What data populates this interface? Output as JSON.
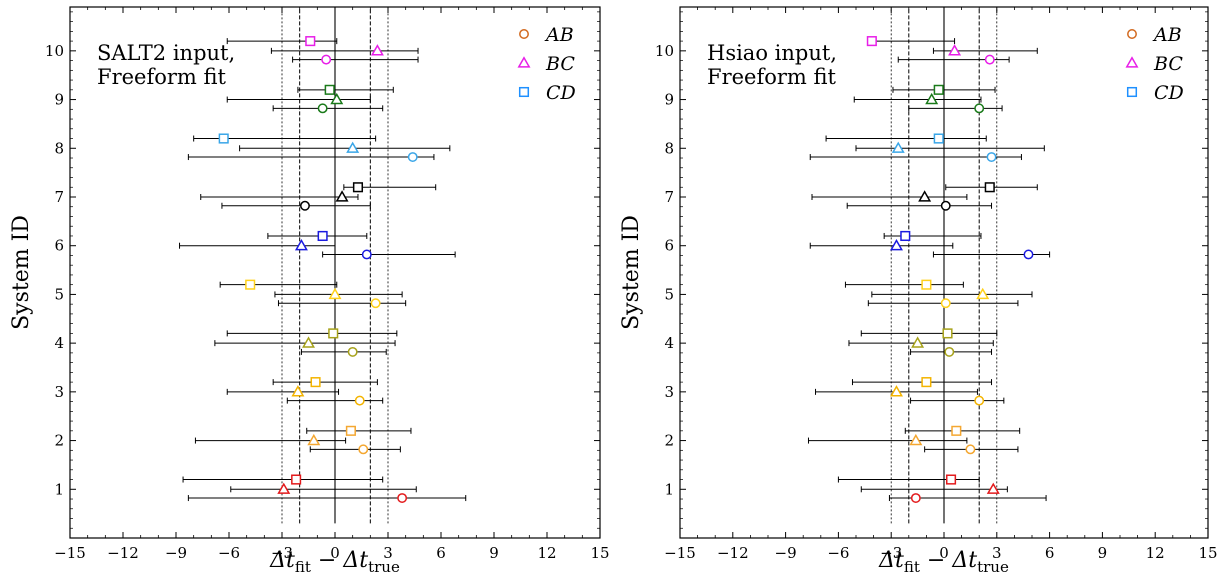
{
  "chart_data": [
    {
      "type": "scatter",
      "annotation_lines": [
        "SALT2 input,",
        "Freeform fit"
      ],
      "xlabel": "Δt_fit − Δt_true",
      "ylabel": "System ID",
      "xlim": [
        -15,
        15
      ],
      "ylim": [
        0,
        10.9
      ],
      "xticks": [
        "−15",
        "−12",
        "−9",
        "−6",
        "−3",
        "0",
        "3",
        "6",
        "9",
        "12",
        "15"
      ],
      "yticks": [
        "1",
        "2",
        "3",
        "4",
        "5",
        "6",
        "7",
        "8",
        "9",
        "10"
      ],
      "ref_lines": {
        "solid": [
          0
        ],
        "dashed": [
          -2,
          2
        ],
        "dotted": [
          -3,
          3
        ]
      },
      "legend": [
        {
          "label": "AB",
          "marker": "circle",
          "color": "#d2691e"
        },
        {
          "label": "BC",
          "marker": "triangle",
          "color": "#e81ee8"
        },
        {
          "label": "CD",
          "marker": "square",
          "color": "#1e90ff"
        }
      ],
      "system_colors": [
        "#e31a1c",
        "#f4a731",
        "#f4b400",
        "#a7a21a",
        "#ffd11a",
        "#1a1ae0",
        "#000000",
        "#3aa6e8",
        "#1a7a1a",
        "#e81ee8",
        "#cd7a2e"
      ],
      "points": [
        {
          "system": 1,
          "pair": "AB",
          "y": 0.82,
          "x": 3.8,
          "lo": -8.3,
          "hi": 7.4
        },
        {
          "system": 1,
          "pair": "BC",
          "y": 1.0,
          "x": -2.9,
          "lo": -5.9,
          "hi": 4.6
        },
        {
          "system": 1,
          "pair": "CD",
          "y": 1.2,
          "x": -2.2,
          "lo": -8.6,
          "hi": 2.7
        },
        {
          "system": 2,
          "pair": "AB",
          "y": 1.82,
          "x": 1.6,
          "lo": -1.4,
          "hi": 3.7
        },
        {
          "system": 2,
          "pair": "BC",
          "y": 2.0,
          "x": -1.2,
          "lo": -7.9,
          "hi": 0.6
        },
        {
          "system": 2,
          "pair": "CD",
          "y": 2.2,
          "x": 0.9,
          "lo": -1.6,
          "hi": 4.3
        },
        {
          "system": 3,
          "pair": "AB",
          "y": 2.82,
          "x": 1.4,
          "lo": -2.7,
          "hi": 2.7
        },
        {
          "system": 3,
          "pair": "BC",
          "y": 3.0,
          "x": -2.1,
          "lo": -6.1,
          "hi": 0.2
        },
        {
          "system": 3,
          "pair": "CD",
          "y": 3.2,
          "x": -1.1,
          "lo": -3.5,
          "hi": 2.4
        },
        {
          "system": 4,
          "pair": "AB",
          "y": 3.82,
          "x": 1.0,
          "lo": -1.9,
          "hi": 2.9
        },
        {
          "system": 4,
          "pair": "BC",
          "y": 4.0,
          "x": -1.5,
          "lo": -6.8,
          "hi": 3.4
        },
        {
          "system": 4,
          "pair": "CD",
          "y": 4.2,
          "x": -0.1,
          "lo": -6.1,
          "hi": 3.5
        },
        {
          "system": 5,
          "pair": "AB",
          "y": 4.82,
          "x": 2.3,
          "lo": -3.2,
          "hi": 4.0
        },
        {
          "system": 5,
          "pair": "BC",
          "y": 5.0,
          "x": 0.0,
          "lo": -3.4,
          "hi": 3.8
        },
        {
          "system": 5,
          "pair": "CD",
          "y": 5.2,
          "x": -4.8,
          "lo": -6.5,
          "hi": 0.1
        },
        {
          "system": 6,
          "pair": "AB",
          "y": 5.82,
          "x": 1.8,
          "lo": -0.7,
          "hi": 6.8
        },
        {
          "system": 6,
          "pair": "BC",
          "y": 6.0,
          "x": -1.9,
          "lo": -8.8,
          "hi": 0.0
        },
        {
          "system": 6,
          "pair": "CD",
          "y": 6.2,
          "x": -0.7,
          "lo": -3.8,
          "hi": 1.8
        },
        {
          "system": 7,
          "pair": "AB",
          "y": 6.82,
          "x": -1.7,
          "lo": -6.4,
          "hi": 2.0
        },
        {
          "system": 7,
          "pair": "BC",
          "y": 7.0,
          "x": 0.4,
          "lo": -7.6,
          "hi": 1.3
        },
        {
          "system": 7,
          "pair": "CD",
          "y": 7.2,
          "x": 1.3,
          "lo": 0.5,
          "hi": 5.7
        },
        {
          "system": 8,
          "pair": "AB",
          "y": 7.82,
          "x": 4.4,
          "lo": -8.3,
          "hi": 5.6
        },
        {
          "system": 8,
          "pair": "BC",
          "y": 8.0,
          "x": 1.0,
          "lo": -5.4,
          "hi": 6.5
        },
        {
          "system": 8,
          "pair": "CD",
          "y": 8.2,
          "x": -6.3,
          "lo": -8.0,
          "hi": 2.3
        },
        {
          "system": 9,
          "pair": "AB",
          "y": 8.82,
          "x": -0.7,
          "lo": -3.5,
          "hi": 2.7
        },
        {
          "system": 9,
          "pair": "BC",
          "y": 9.0,
          "x": 0.1,
          "lo": -6.1,
          "hi": 2.0
        },
        {
          "system": 9,
          "pair": "CD",
          "y": 9.2,
          "x": -0.3,
          "lo": -2.1,
          "hi": 3.3
        },
        {
          "system": 10,
          "pair": "AB",
          "y": 9.82,
          "x": -0.5,
          "lo": -2.4,
          "hi": 4.7
        },
        {
          "system": 10,
          "pair": "BC",
          "y": 10.0,
          "x": 2.4,
          "lo": -3.6,
          "hi": 4.7
        },
        {
          "system": 10,
          "pair": "CD",
          "y": 10.2,
          "x": -1.4,
          "lo": -6.1,
          "hi": 0.1
        }
      ]
    },
    {
      "type": "scatter",
      "annotation_lines": [
        "Hsiao input,",
        "Freeform fit"
      ],
      "xlabel": "Δt_fit − Δt_true",
      "ylabel": "System ID",
      "xlim": [
        -15,
        15
      ],
      "ylim": [
        0,
        10.9
      ],
      "xticks": [
        "−15",
        "−12",
        "−9",
        "−6",
        "−3",
        "0",
        "3",
        "6",
        "9",
        "12",
        "15"
      ],
      "yticks": [
        "1",
        "2",
        "3",
        "4",
        "5",
        "6",
        "7",
        "8",
        "9",
        "10"
      ],
      "ref_lines": {
        "solid": [
          0
        ],
        "dashed": [
          -2,
          2
        ],
        "dotted": [
          -3,
          3
        ]
      },
      "legend": [
        {
          "label": "AB",
          "marker": "circle",
          "color": "#d2691e"
        },
        {
          "label": "BC",
          "marker": "triangle",
          "color": "#e81ee8"
        },
        {
          "label": "CD",
          "marker": "square",
          "color": "#1e90ff"
        }
      ],
      "system_colors": [
        "#e31a1c",
        "#f4a731",
        "#f4b400",
        "#a7a21a",
        "#ffd11a",
        "#1a1ae0",
        "#000000",
        "#3aa6e8",
        "#1a7a1a",
        "#e81ee8",
        "#cd7a2e"
      ],
      "points": [
        {
          "system": 1,
          "pair": "AB",
          "y": 0.82,
          "x": -1.6,
          "lo": -3.1,
          "hi": 5.8
        },
        {
          "system": 1,
          "pair": "BC",
          "y": 1.0,
          "x": 2.8,
          "lo": -4.7,
          "hi": 3.6
        },
        {
          "system": 1,
          "pair": "CD",
          "y": 1.2,
          "x": 0.4,
          "lo": -6.0,
          "hi": 2.0
        },
        {
          "system": 2,
          "pair": "AB",
          "y": 1.82,
          "x": 1.5,
          "lo": -1.1,
          "hi": 4.2
        },
        {
          "system": 2,
          "pair": "BC",
          "y": 2.0,
          "x": -1.6,
          "lo": -7.7,
          "hi": 1.3
        },
        {
          "system": 2,
          "pair": "CD",
          "y": 2.2,
          "x": 0.7,
          "lo": -2.2,
          "hi": 4.3
        },
        {
          "system": 3,
          "pair": "AB",
          "y": 2.82,
          "x": 2.0,
          "lo": -1.9,
          "hi": 3.4
        },
        {
          "system": 3,
          "pair": "BC",
          "y": 3.0,
          "x": -2.7,
          "lo": -7.3,
          "hi": 1.9
        },
        {
          "system": 3,
          "pair": "CD",
          "y": 3.2,
          "x": -1.0,
          "lo": -5.2,
          "hi": 2.7
        },
        {
          "system": 4,
          "pair": "AB",
          "y": 3.82,
          "x": 0.3,
          "lo": -1.9,
          "hi": 2.7
        },
        {
          "system": 4,
          "pair": "BC",
          "y": 4.0,
          "x": -1.5,
          "lo": -5.4,
          "hi": 2.8
        },
        {
          "system": 4,
          "pair": "CD",
          "y": 4.2,
          "x": 0.2,
          "lo": -4.7,
          "hi": 3.0
        },
        {
          "system": 5,
          "pair": "AB",
          "y": 4.82,
          "x": 0.1,
          "lo": -4.3,
          "hi": 4.2
        },
        {
          "system": 5,
          "pair": "BC",
          "y": 5.0,
          "x": 2.2,
          "lo": -4.1,
          "hi": 5.0
        },
        {
          "system": 5,
          "pair": "CD",
          "y": 5.2,
          "x": -1.0,
          "lo": -5.6,
          "hi": 1.1
        },
        {
          "system": 6,
          "pair": "AB",
          "y": 5.82,
          "x": 4.8,
          "lo": -0.6,
          "hi": 6.0
        },
        {
          "system": 6,
          "pair": "BC",
          "y": 6.0,
          "x": -2.7,
          "lo": -7.6,
          "hi": 0.5
        },
        {
          "system": 6,
          "pair": "CD",
          "y": 6.2,
          "x": -2.2,
          "lo": -3.4,
          "hi": 2.1
        },
        {
          "system": 7,
          "pair": "AB",
          "y": 6.82,
          "x": 0.1,
          "lo": -5.5,
          "hi": 2.7
        },
        {
          "system": 7,
          "pair": "BC",
          "y": 7.0,
          "x": -1.1,
          "lo": -7.5,
          "hi": 1.3
        },
        {
          "system": 7,
          "pair": "CD",
          "y": 7.2,
          "x": 2.6,
          "lo": 0.1,
          "hi": 5.3
        },
        {
          "system": 8,
          "pair": "AB",
          "y": 7.82,
          "x": 2.7,
          "lo": -7.6,
          "hi": 4.4
        },
        {
          "system": 8,
          "pair": "BC",
          "y": 8.0,
          "x": -2.6,
          "lo": -5.0,
          "hi": 5.7
        },
        {
          "system": 8,
          "pair": "CD",
          "y": 8.2,
          "x": -0.3,
          "lo": -6.7,
          "hi": 2.4
        },
        {
          "system": 9,
          "pair": "AB",
          "y": 8.82,
          "x": 2.0,
          "lo": -2.0,
          "hi": 3.3
        },
        {
          "system": 9,
          "pair": "BC",
          "y": 9.0,
          "x": -0.7,
          "lo": -5.1,
          "hi": 2.1
        },
        {
          "system": 9,
          "pair": "CD",
          "y": 9.2,
          "x": -0.3,
          "lo": -2.9,
          "hi": 2.9
        },
        {
          "system": 10,
          "pair": "AB",
          "y": 9.82,
          "x": 2.6,
          "lo": -2.6,
          "hi": 3.7
        },
        {
          "system": 10,
          "pair": "BC",
          "y": 10.0,
          "x": 0.6,
          "lo": -0.6,
          "hi": 5.3
        },
        {
          "system": 10,
          "pair": "CD",
          "y": 10.2,
          "x": -4.1,
          "lo": -4.1,
          "hi": 0.6
        }
      ]
    }
  ]
}
